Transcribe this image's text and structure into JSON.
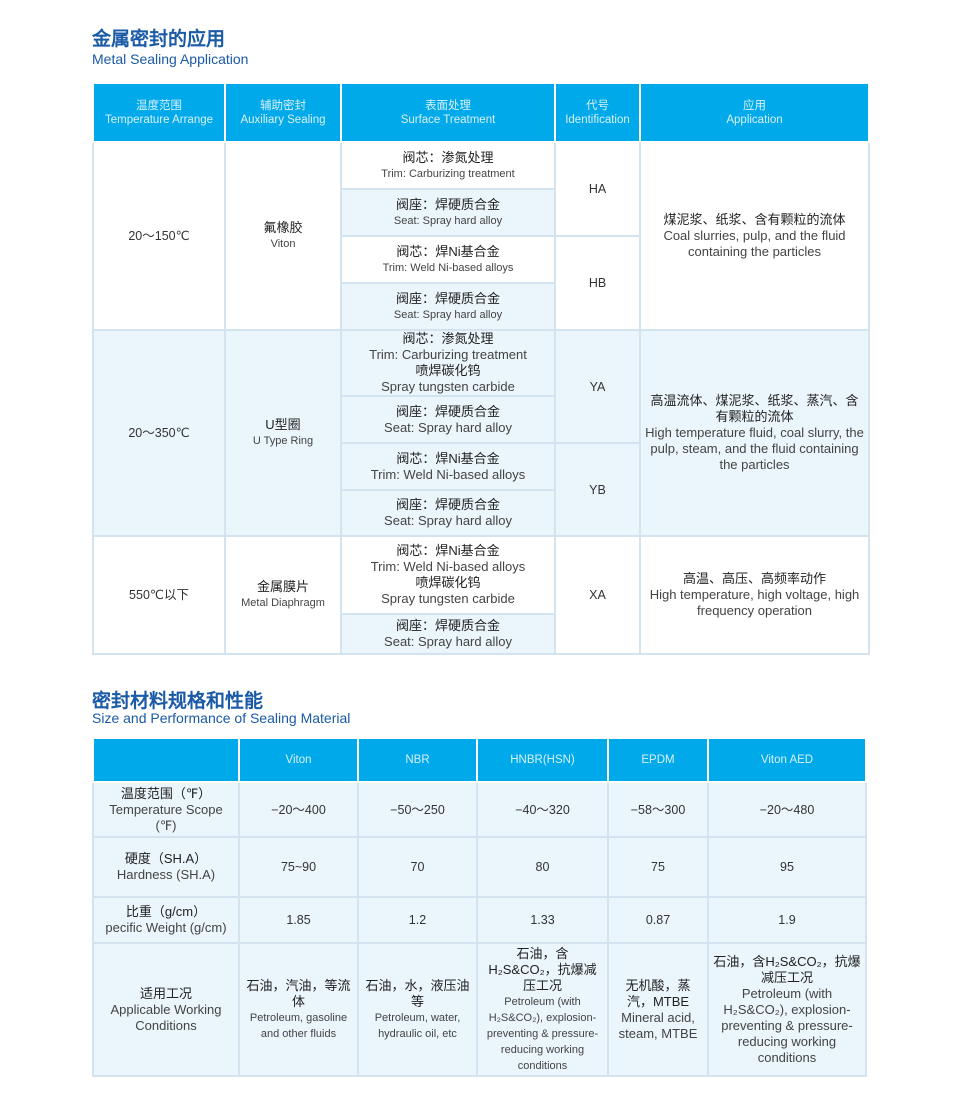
{
  "section1": {
    "title_cn": "金属密封的应用",
    "title_en": "Metal Sealing Application",
    "headers": [
      {
        "cn": "温度范围",
        "en": "Temperature Arrange"
      },
      {
        "cn": "辅助密封",
        "en": "Auxiliary Sealing"
      },
      {
        "cn": "表面处理",
        "en": "Surface Treatment"
      },
      {
        "cn": "代号",
        "en": "Identification"
      },
      {
        "cn": "应用",
        "en": "Application"
      }
    ],
    "groups": [
      {
        "temperature": "20～150℃",
        "aux_cn": "氟橡胶",
        "aux_en": "Viton",
        "treatments": [
          {
            "cn": "阀芯：渗氮处理",
            "en": "Trim: Carburizing treatment"
          },
          {
            "cn": "阀座：焊硬质合金",
            "en": "Seat: Spray hard alloy"
          },
          {
            "cn": "阀芯：焊Ni基合金",
            "en": "Trim: Weld Ni-based alloys"
          },
          {
            "cn": "阀座：焊硬质合金",
            "en": "Seat: Spray hard alloy"
          }
        ],
        "ids": [
          "HA",
          "HB"
        ],
        "app_cn": "煤泥浆、纸浆、含有颗粒的流体",
        "app_en": "Coal slurries, pulp, and the fluid containing the particles"
      },
      {
        "temperature": "20～350℃",
        "aux_cn": "U型圈",
        "aux_en": "U Type Ring",
        "treatments": [
          {
            "cn": "阀芯：渗氮处理",
            "en": "Trim: Carburizing treatment",
            "cn2": "喷焊碳化钨",
            "en2": "Spray tungsten carbide"
          },
          {
            "cn": "阀座：焊硬质合金",
            "en": "Seat: Spray hard alloy"
          },
          {
            "cn": "阀芯：焊Ni基合金",
            "en": "Trim: Weld Ni-based alloys"
          },
          {
            "cn": "阀座：焊硬质合金",
            "en": "Seat: Spray hard alloy"
          }
        ],
        "ids": [
          "YA",
          "YB"
        ],
        "app_cn": "高温流体、煤泥浆、纸浆、蒸汽、含有颗粒的流体",
        "app_en": "High temperature fluid, coal slurry, the pulp, steam, and the fluid containing the particles"
      },
      {
        "temperature": "550℃以下",
        "aux_cn": "金属膜片",
        "aux_en": "Metal Diaphragm",
        "treatments": [
          {
            "cn": "阀芯：焊Ni基合金",
            "en": "Trim: Weld Ni-based alloys",
            "cn2": "喷焊碳化钨",
            "en2": "Spray tungsten carbide"
          },
          {
            "cn": "阀座：焊硬质合金",
            "en": "Seat: Spray hard alloy"
          }
        ],
        "ids": [
          "XA"
        ],
        "app_cn": "高温、高压、高频率动作",
        "app_en": "High temperature, high voltage, high frequency operation"
      }
    ]
  },
  "section2": {
    "title_cn": "密封材料规格和性能",
    "title_en": "Size and Performance of Sealing Material",
    "columns": [
      "Viton",
      "NBR",
      "HNBR(HSN)",
      "EPDM",
      "Viton AED"
    ],
    "rows": [
      {
        "cn": "温度范围（℉）",
        "en": "Temperature Scope (℉)",
        "values": [
          "−20～400",
          "−50～250",
          "−40～320",
          "−58～300",
          "−20～480"
        ]
      },
      {
        "cn": "硬度（SH.A）",
        "en": "Hardness (SH.A)",
        "values": [
          "75~90",
          "70",
          "80",
          "75",
          "95"
        ]
      },
      {
        "cn": "比重（g/cm）",
        "en": "pecific Weight (g/cm)",
        "values": [
          "1.85",
          "1.2",
          "1.33",
          "0.87",
          "1.9"
        ]
      }
    ],
    "conditions": {
      "cn": "适用工况",
      "en": "Applicable Working Conditions",
      "values": [
        {
          "cn": "石油，汽油，等流体",
          "en": "Petroleum, gasoline and other fluids"
        },
        {
          "cn": "石油，水，液压油等",
          "en": "Petroleum, water, hydraulic oil, etc"
        },
        {
          "cn": "石油，含H₂S&CO₂，抗爆减压工况",
          "en": "Petroleum (with H₂S&CO₂), explosion-preventing & pressure-reducing working conditions"
        },
        {
          "cn": "无机酸，蒸汽，MTBE",
          "en": "Mineral acid, steam, MTBE"
        },
        {
          "cn": "石油，含H₂S&CO₂，抗爆减压工况",
          "en": "Petroleum (with H₂S&CO₂), explosion-preventing & pressure-reducing working conditions"
        }
      ]
    }
  }
}
